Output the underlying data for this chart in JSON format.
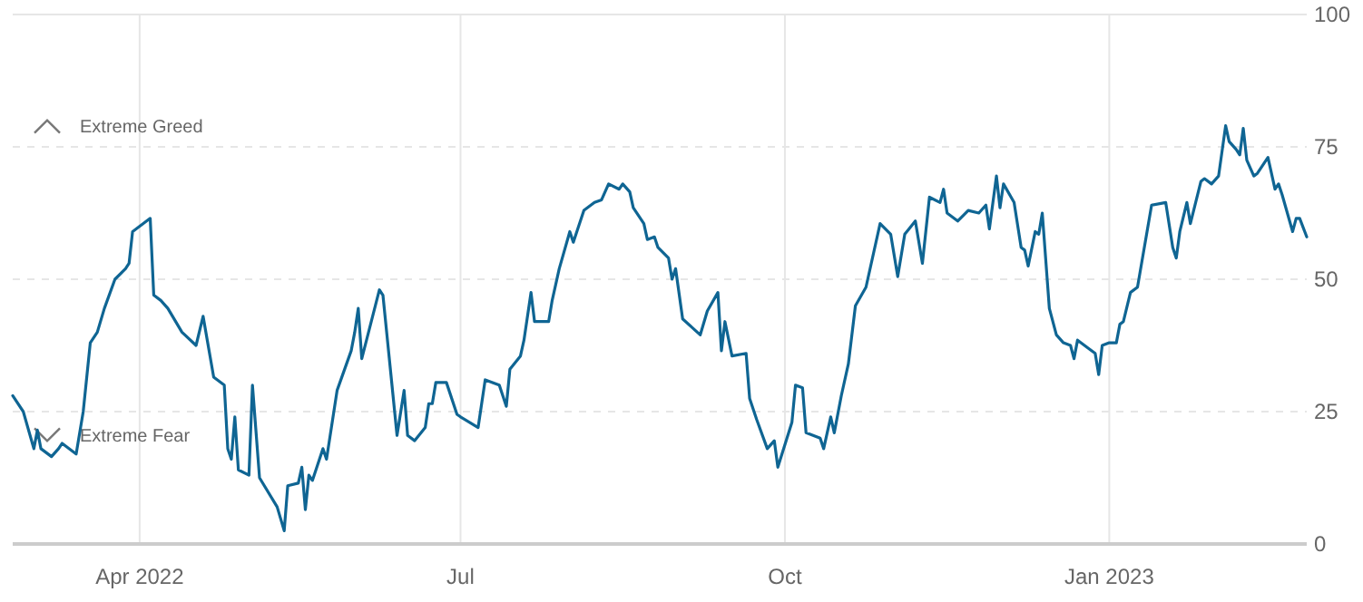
{
  "chart_data": {
    "type": "line",
    "series": [
      {
        "color": "#0f6593",
        "x": [
          "2022-02-24",
          "2022-02-27",
          "2022-03-02",
          "2022-03-03",
          "2022-03-04",
          "2022-03-07",
          "2022-03-09",
          "2022-03-10",
          "2022-03-14",
          "2022-03-16",
          "2022-03-18",
          "2022-03-20",
          "2022-03-22",
          "2022-03-25",
          "2022-03-28",
          "2022-03-29",
          "2022-03-30",
          "2022-04-04",
          "2022-04-05",
          "2022-04-07",
          "2022-04-09",
          "2022-04-13",
          "2022-04-17",
          "2022-04-19",
          "2022-04-22",
          "2022-04-25",
          "2022-04-26",
          "2022-04-27",
          "2022-04-28",
          "2022-04-29",
          "2022-05-02",
          "2022-05-03",
          "2022-05-05",
          "2022-05-10",
          "2022-05-12",
          "2022-05-13",
          "2022-05-16",
          "2022-05-17",
          "2022-05-18",
          "2022-05-19",
          "2022-05-20",
          "2022-05-23",
          "2022-05-24",
          "2022-05-27",
          "2022-05-31",
          "2022-06-01",
          "2022-06-02",
          "2022-06-03",
          "2022-06-08",
          "2022-06-09",
          "2022-06-13",
          "2022-06-15",
          "2022-06-16",
          "2022-06-18",
          "2022-06-21",
          "2022-06-22",
          "2022-06-23",
          "2022-06-24",
          "2022-06-27",
          "2022-06-30",
          "2022-07-01",
          "2022-07-06",
          "2022-07-08",
          "2022-07-12",
          "2022-07-14",
          "2022-07-15",
          "2022-07-18",
          "2022-07-19",
          "2022-07-21",
          "2022-07-22",
          "2022-07-26",
          "2022-07-27",
          "2022-07-29",
          "2022-08-01",
          "2022-08-02",
          "2022-08-05",
          "2022-08-08",
          "2022-08-10",
          "2022-08-12",
          "2022-08-15",
          "2022-08-16",
          "2022-08-18",
          "2022-08-19",
          "2022-08-22",
          "2022-08-23",
          "2022-08-25",
          "2022-08-26",
          "2022-08-29",
          "2022-08-30",
          "2022-08-31",
          "2022-09-02",
          "2022-09-07",
          "2022-09-09",
          "2022-09-12",
          "2022-09-13",
          "2022-09-14",
          "2022-09-16",
          "2022-09-20",
          "2022-09-21",
          "2022-09-23",
          "2022-09-26",
          "2022-09-28",
          "2022-09-29",
          "2022-10-03",
          "2022-10-04",
          "2022-10-06",
          "2022-10-07",
          "2022-10-11",
          "2022-10-12",
          "2022-10-14",
          "2022-10-15",
          "2022-10-17",
          "2022-10-19",
          "2022-10-21",
          "2022-10-24",
          "2022-10-28",
          "2022-10-31",
          "2022-11-02",
          "2022-11-04",
          "2022-11-07",
          "2022-11-09",
          "2022-11-11",
          "2022-11-14",
          "2022-11-15",
          "2022-11-16",
          "2022-11-19",
          "2022-11-22",
          "2022-11-25",
          "2022-11-27",
          "2022-11-28",
          "2022-11-30",
          "2022-12-01",
          "2022-12-02",
          "2022-12-05",
          "2022-12-07",
          "2022-12-08",
          "2022-12-09",
          "2022-12-11",
          "2022-12-12",
          "2022-12-13",
          "2022-12-15",
          "2022-12-17",
          "2022-12-19",
          "2022-12-21",
          "2022-12-22",
          "2022-12-23",
          "2022-12-26",
          "2022-12-28",
          "2022-12-29",
          "2022-12-30",
          "2023-01-01",
          "2023-01-03",
          "2023-01-04",
          "2023-01-05",
          "2023-01-07",
          "2023-01-09",
          "2023-01-13",
          "2023-01-17",
          "2023-01-19",
          "2023-01-20",
          "2023-01-21",
          "2023-01-23",
          "2023-01-24",
          "2023-01-27",
          "2023-01-28",
          "2023-01-30",
          "2023-02-01",
          "2023-02-03",
          "2023-02-04",
          "2023-02-06",
          "2023-02-07",
          "2023-02-08",
          "2023-02-09",
          "2023-02-11",
          "2023-02-12",
          "2023-02-15",
          "2023-02-17",
          "2023-02-18",
          "2023-02-19",
          "2023-02-22",
          "2023-02-23",
          "2023-02-24",
          "2023-02-26"
        ],
        "values": [
          28,
          25,
          18,
          21.5,
          18,
          16.5,
          18,
          19,
          17,
          25,
          38,
          40,
          44.5,
          50,
          52,
          53,
          59,
          61.5,
          47,
          46,
          44.5,
          40,
          37.5,
          43,
          31.5,
          30,
          18,
          16,
          24,
          14,
          13,
          30,
          12.5,
          7,
          2.5,
          11,
          11.5,
          14.5,
          6.5,
          13,
          12,
          18,
          16,
          29,
          36.5,
          40,
          44.5,
          35,
          48,
          47,
          20.5,
          29,
          20.5,
          19.5,
          22,
          26.5,
          26.5,
          30.5,
          30.5,
          24.5,
          24,
          22,
          31,
          30,
          26,
          33,
          35.5,
          38.5,
          47.5,
          42,
          42,
          46,
          52,
          59,
          57,
          63,
          64.5,
          65,
          68,
          67,
          68,
          66.5,
          63.5,
          60.5,
          57.5,
          58,
          56,
          54,
          50,
          52,
          42.5,
          39.5,
          44,
          47.5,
          36.5,
          42,
          35.5,
          36,
          27.5,
          23.5,
          18,
          19.5,
          14.5,
          23,
          30,
          29.5,
          21,
          20,
          18,
          24,
          21,
          28,
          34,
          45,
          48.5,
          60.5,
          58.5,
          50.5,
          58.5,
          61,
          53,
          65.5,
          64.5,
          67,
          62.5,
          61,
          63,
          62.5,
          64,
          59.5,
          69.5,
          63.5,
          68,
          64.5,
          56,
          55.5,
          52.5,
          59,
          58.5,
          62.5,
          44.5,
          39.5,
          38,
          37.5,
          35,
          38.5,
          37,
          36,
          32,
          37.5,
          38,
          38,
          41.5,
          42,
          47.5,
          48.5,
          64,
          64.5,
          56,
          54,
          59,
          64.5,
          60.5,
          68.5,
          69,
          68,
          69.5,
          79,
          76,
          74.5,
          73.5,
          78.5,
          72.5,
          69.5,
          70,
          73,
          67,
          68,
          66,
          59,
          61.5,
          61.5,
          58
        ]
      }
    ],
    "xlim": [
      "2022-02-24",
      "2023-02-26"
    ],
    "xticks": [
      {
        "value": "2022-04-01",
        "label": "Apr 2022"
      },
      {
        "value": "2022-07-01",
        "label": "Jul"
      },
      {
        "value": "2022-10-01",
        "label": "Oct"
      },
      {
        "value": "2023-01-01",
        "label": "Jan 2023"
      }
    ],
    "ylim": [
      0,
      100
    ],
    "yticks": [
      0,
      25,
      50,
      75,
      100
    ],
    "grid": true,
    "marker": "none",
    "line_style": "solid",
    "annotations": [
      "Extreme Greed",
      "Extreme Fear"
    ]
  }
}
